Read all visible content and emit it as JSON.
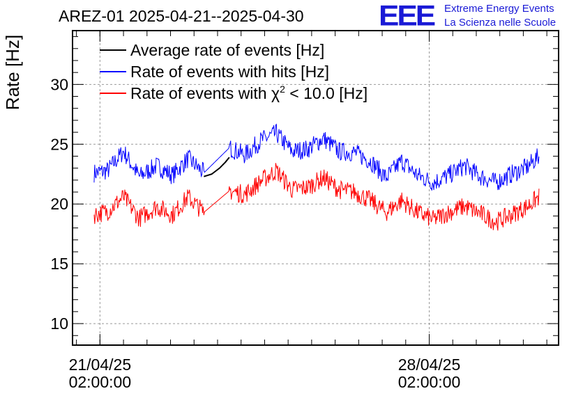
{
  "chart_data": {
    "type": "line",
    "title": "AREZ-01 2025-04-21--2025-04-30",
    "ylabel": "Rate [Hz]",
    "xlabel": "",
    "ylim": [
      8.2,
      34.5
    ],
    "xlim": [
      "2025-04-20 12:00",
      "2025-04-30 20:00"
    ],
    "grid": true,
    "legend_position": "top-left",
    "y_ticks": [
      10,
      15,
      20,
      25,
      30
    ],
    "x_ticks": [
      {
        "date": "2025-04-21 02:00",
        "line1": "21/04/25",
        "line2": "02:00:00"
      },
      {
        "date": "2025-04-28 02:00",
        "line1": "28/04/25",
        "line2": "02:00:00"
      }
    ],
    "series": [
      {
        "name": "Average rate of events [Hz]",
        "color": "#000000",
        "x": [
          "2025-04-23 07:00",
          "2025-04-23 11:00",
          "2025-04-23 15:00",
          "2025-04-23 18:00",
          "2025-04-23 20:00"
        ],
        "values": [
          22.3,
          22.5,
          23.0,
          23.5,
          23.9
        ]
      },
      {
        "name": "Rate of events with hits [Hz]",
        "color": "#0000ff",
        "x": [
          "2025-04-20 23:00",
          "2025-04-21 06:00",
          "2025-04-21 14:00",
          "2025-04-21 22:00",
          "2025-04-22 07:00",
          "2025-04-22 15:00",
          "2025-04-22 23:00",
          "2025-04-23 07:00",
          "2025-04-23 20:00",
          "2025-04-24 04:00",
          "2025-04-24 12:00",
          "2025-04-24 20:00",
          "2025-04-25 04:00",
          "2025-04-25 12:00",
          "2025-04-25 20:00",
          "2025-04-26 04:00",
          "2025-04-26 12:00",
          "2025-04-26 20:00",
          "2025-04-27 04:00",
          "2025-04-27 12:00",
          "2025-04-27 20:00",
          "2025-04-28 04:00",
          "2025-04-28 12:00",
          "2025-04-28 20:00",
          "2025-04-29 04:00",
          "2025-04-29 12:00",
          "2025-04-29 20:00",
          "2025-04-30 04:00",
          "2025-04-30 10:00"
        ],
        "values": [
          22.6,
          22.8,
          24.4,
          22.3,
          23.2,
          22.4,
          23.8,
          22.6,
          24.7,
          24.1,
          25.3,
          25.9,
          24.4,
          24.6,
          25.5,
          24.4,
          24.3,
          23.6,
          22.2,
          23.6,
          22.4,
          21.8,
          22.4,
          23.2,
          22.3,
          21.8,
          22.5,
          23.1,
          24.0
        ]
      },
      {
        "name": "Rate of events with χ² < 10.0 [Hz]",
        "color": "#ff0000",
        "x": [
          "2025-04-20 23:00",
          "2025-04-21 06:00",
          "2025-04-21 14:00",
          "2025-04-21 22:00",
          "2025-04-22 07:00",
          "2025-04-22 15:00",
          "2025-04-22 23:00",
          "2025-04-23 07:00",
          "2025-04-23 20:00",
          "2025-04-24 04:00",
          "2025-04-24 12:00",
          "2025-04-24 20:00",
          "2025-04-25 04:00",
          "2025-04-25 12:00",
          "2025-04-25 20:00",
          "2025-04-26 04:00",
          "2025-04-26 12:00",
          "2025-04-26 20:00",
          "2025-04-27 04:00",
          "2025-04-27 12:00",
          "2025-04-27 20:00",
          "2025-04-28 04:00",
          "2025-04-28 12:00",
          "2025-04-28 20:00",
          "2025-04-29 04:00",
          "2025-04-29 12:00",
          "2025-04-29 20:00",
          "2025-04-30 04:00",
          "2025-04-30 10:00"
        ],
        "values": [
          19.1,
          19.4,
          20.6,
          18.8,
          19.8,
          19.1,
          20.6,
          19.3,
          21.1,
          20.8,
          21.9,
          22.8,
          21.2,
          21.4,
          22.2,
          21.2,
          21.0,
          20.3,
          19.3,
          20.3,
          19.3,
          18.7,
          19.3,
          19.8,
          19.2,
          18.5,
          19.1,
          19.8,
          20.6
        ]
      }
    ]
  },
  "header": {
    "title": "AREZ-01 2025-04-21--2025-04-30",
    "logo_text": "EEE",
    "logo_line1": "Extreme Energy Events",
    "logo_line2": "La Scienza nelle Scuole"
  },
  "legend": {
    "items": [
      {
        "pre": "Average rate of events [Hz]",
        "sup": "",
        "post": ""
      },
      {
        "pre": "Rate of events with hits [Hz]",
        "sup": "",
        "post": ""
      },
      {
        "pre": "Rate of events with χ",
        "sup": "2",
        "post": " < 10.0 [Hz]"
      }
    ]
  }
}
